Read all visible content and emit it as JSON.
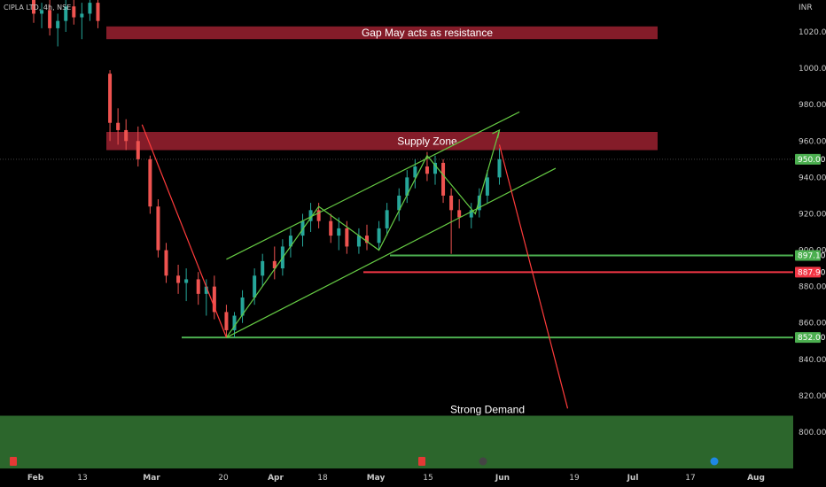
{
  "symbol_header": "CIPLA LTD, 4h, NSE",
  "currency": "INR",
  "colors": {
    "background": "#000000",
    "up": "#26a69a",
    "down": "#ef5350",
    "channel": "#66cc44",
    "projection": "#ff3b3b",
    "level_green": "#4caf50",
    "level_red": "#f23645",
    "supply_zone": "#8b1e2b",
    "demand_zone": "#2e6b2e",
    "price_tag": "#4caf50",
    "price_tag_red": "#f23645"
  },
  "icons": [
    "earnings-icon",
    "earnings-icon",
    "split-icon",
    "dividend-icon"
  ],
  "chart_data": {
    "type": "candlestick",
    "title": "",
    "x_ticks": [
      "Feb",
      "13",
      "Mar",
      "20",
      "Apr",
      "18",
      "May",
      "15",
      "Jun",
      "19",
      "Jul",
      "17",
      "Aug"
    ],
    "y_ticks": [
      800,
      820,
      840,
      860,
      880,
      900,
      920,
      940,
      960,
      980,
      1000,
      1020
    ],
    "ylim": [
      785,
      1040
    ],
    "last_price": 950.0,
    "zones": [
      {
        "label": "Gap May acts as resistance",
        "kind": "supply",
        "low": 1016,
        "high": 1023
      },
      {
        "label": "Supply Zone",
        "kind": "supply",
        "low": 955,
        "high": 965
      },
      {
        "label": "Strong Demand",
        "kind": "demand",
        "low": 780,
        "high": 809
      }
    ],
    "levels": [
      {
        "price": 897.1,
        "label": "897.10",
        "color": "green"
      },
      {
        "price": 887.9,
        "label": "887.90",
        "color": "red"
      },
      {
        "price": 852.0,
        "label": "852.00",
        "color": "green"
      }
    ],
    "channel": {
      "upper": [
        [
          "Mar 20",
          895
        ],
        [
          "Jun 1",
          976
        ]
      ],
      "lower": [
        [
          "Mar 20",
          852
        ],
        [
          "Jun 10",
          945
        ]
      ]
    },
    "zigzag": [
      [
        "Mar 20",
        852
      ],
      [
        "Apr 12",
        924
      ],
      [
        "Apr 27",
        900
      ],
      [
        "May 9",
        952
      ],
      [
        "May 21",
        920
      ],
      [
        "May 27",
        966
      ]
    ],
    "projection": [
      [
        "Feb 28",
        969
      ],
      [
        "Mar 20",
        852
      ]
    ],
    "projection_down": [
      [
        "May 27",
        958
      ],
      [
        "Jun 13",
        813
      ]
    ],
    "candles": [
      [
        "Feb 1",
        1038,
        1042,
        1025,
        1030
      ],
      [
        "Feb 3",
        1030,
        1036,
        1022,
        1032
      ],
      [
        "Feb 5",
        1032,
        1040,
        1018,
        1022
      ],
      [
        "Feb 7",
        1022,
        1030,
        1012,
        1026
      ],
      [
        "Feb 9",
        1026,
        1038,
        1020,
        1034
      ],
      [
        "Feb 11",
        1034,
        1040,
        1024,
        1028
      ],
      [
        "Feb 13",
        1028,
        1036,
        1016,
        1030
      ],
      [
        "Feb 15",
        1030,
        1040,
        1026,
        1036
      ],
      [
        "Feb 17",
        1036,
        1042,
        1022,
        1026
      ],
      [
        "Feb 20",
        997,
        999,
        960,
        970
      ],
      [
        "Feb 22",
        970,
        978,
        958,
        966
      ],
      [
        "Feb 24",
        966,
        972,
        955,
        960
      ],
      [
        "Feb 27",
        960,
        968,
        946,
        950
      ],
      [
        "Mar 1",
        950,
        952,
        920,
        924
      ],
      [
        "Mar 3",
        924,
        928,
        896,
        900
      ],
      [
        "Mar 5",
        900,
        904,
        882,
        886
      ],
      [
        "Mar 8",
        886,
        892,
        876,
        882
      ],
      [
        "Mar 10",
        882,
        890,
        872,
        884
      ],
      [
        "Mar 13",
        884,
        888,
        870,
        876
      ],
      [
        "Mar 15",
        876,
        884,
        864,
        880
      ],
      [
        "Mar 17",
        880,
        886,
        862,
        866
      ],
      [
        "Mar 20",
        866,
        870,
        852,
        856
      ],
      [
        "Mar 22",
        856,
        866,
        852,
        864
      ],
      [
        "Mar 24",
        864,
        878,
        860,
        874
      ],
      [
        "Mar 27",
        874,
        890,
        870,
        886
      ],
      [
        "Mar 29",
        886,
        898,
        880,
        894
      ],
      [
        "Apr 1",
        894,
        902,
        884,
        890
      ],
      [
        "Apr 3",
        890,
        906,
        886,
        902
      ],
      [
        "Apr 5",
        902,
        912,
        896,
        908
      ],
      [
        "Apr 8",
        908,
        920,
        902,
        916
      ],
      [
        "Apr 10",
        916,
        926,
        910,
        922
      ],
      [
        "Apr 12",
        922,
        926,
        912,
        916
      ],
      [
        "Apr 15",
        916,
        920,
        904,
        908
      ],
      [
        "Apr 17",
        908,
        918,
        900,
        912
      ],
      [
        "Apr 19",
        912,
        916,
        898,
        902
      ],
      [
        "Apr 22",
        902,
        912,
        898,
        908
      ],
      [
        "Apr 24",
        908,
        914,
        900,
        904
      ],
      [
        "Apr 27",
        904,
        916,
        900,
        912
      ],
      [
        "Apr 29",
        912,
        926,
        908,
        922
      ],
      [
        "May 2",
        922,
        934,
        916,
        930
      ],
      [
        "May 4",
        930,
        944,
        926,
        940
      ],
      [
        "May 6",
        940,
        950,
        934,
        946
      ],
      [
        "May 9",
        946,
        954,
        938,
        942
      ],
      [
        "May 11",
        942,
        952,
        936,
        948
      ],
      [
        "May 13",
        948,
        950,
        926,
        930
      ],
      [
        "May 15",
        930,
        934,
        898,
        922
      ],
      [
        "May 17",
        922,
        928,
        912,
        918
      ],
      [
        "May 20",
        918,
        926,
        912,
        922
      ],
      [
        "May 22",
        922,
        934,
        918,
        930
      ],
      [
        "May 24",
        930,
        944,
        926,
        940
      ],
      [
        "May 27",
        940,
        956,
        936,
        950
      ]
    ]
  }
}
